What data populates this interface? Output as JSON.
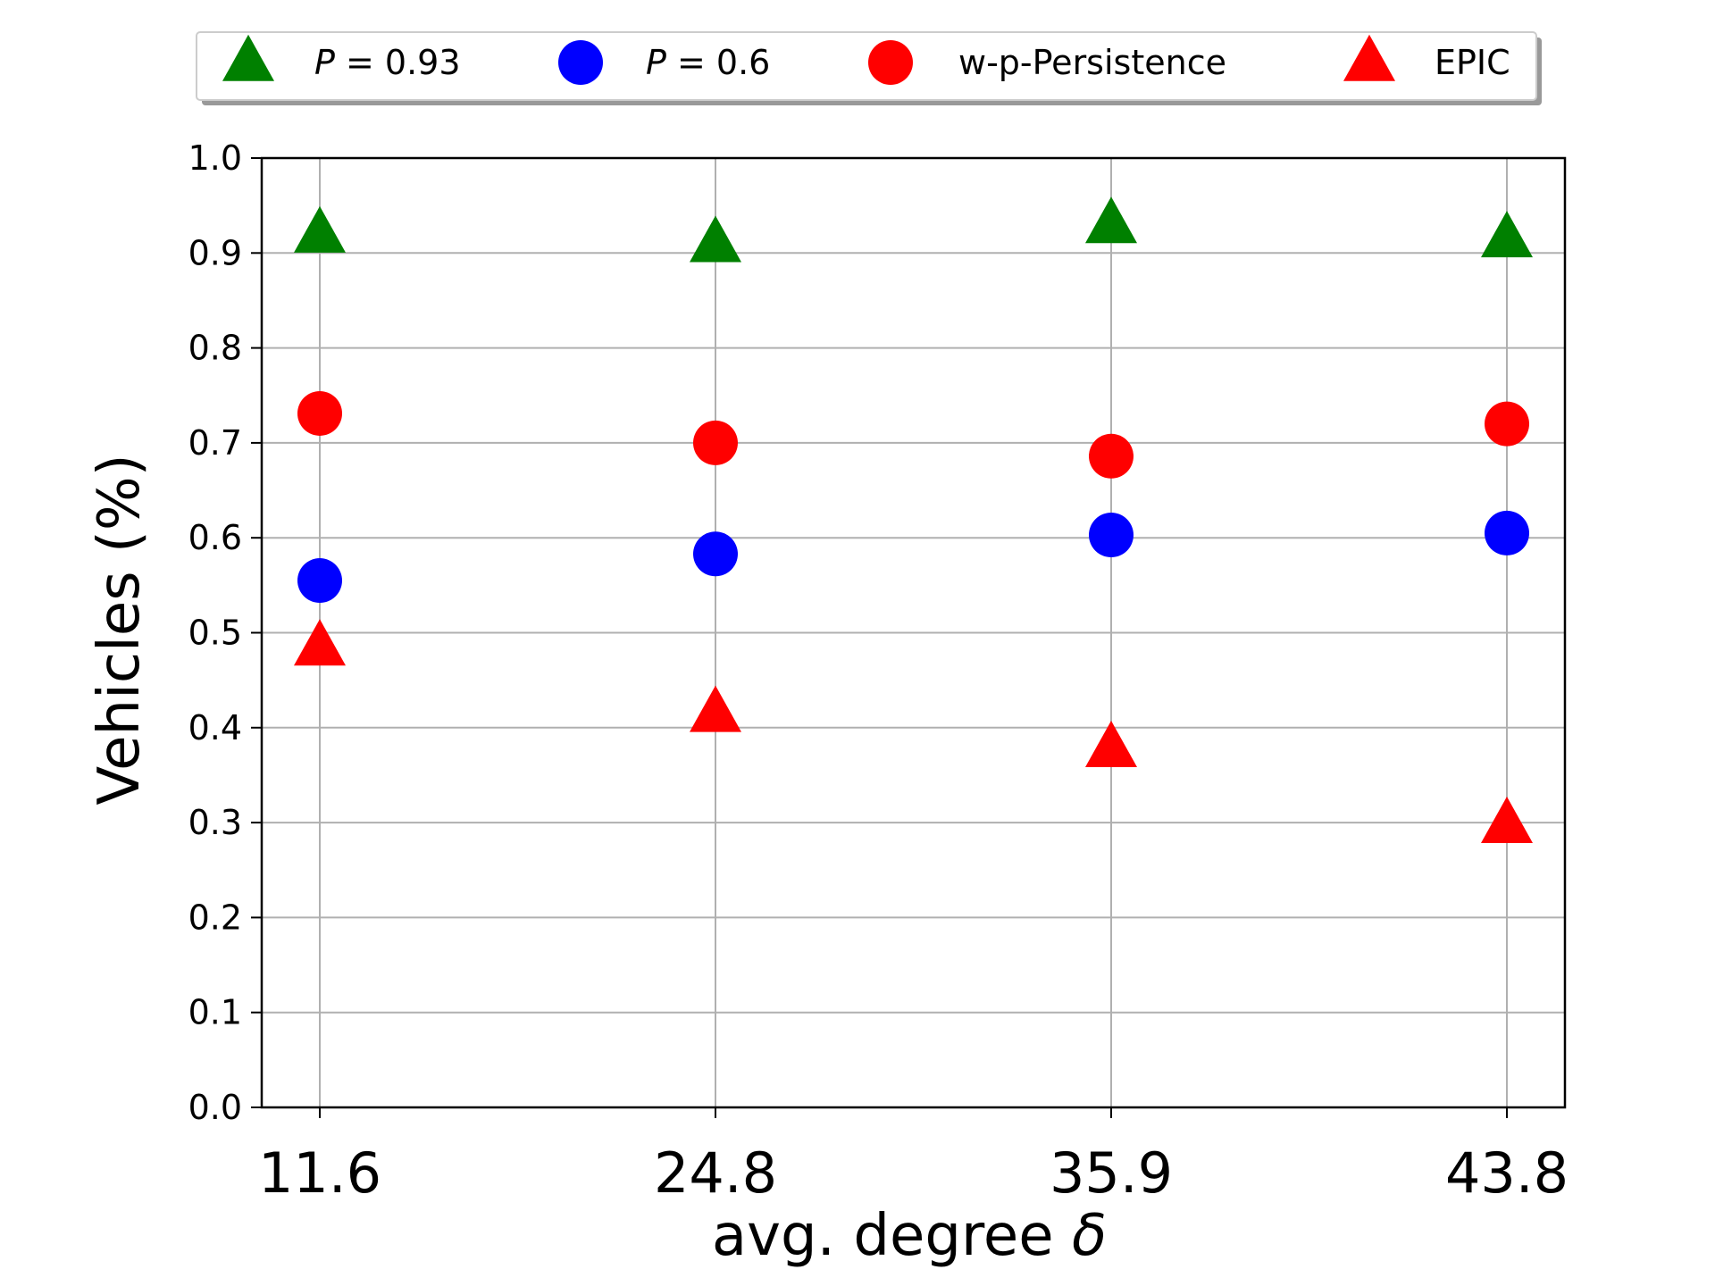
{
  "chart_data": {
    "type": "scatter",
    "categories": [
      "11.6",
      "24.8",
      "35.9",
      "43.8"
    ],
    "xlabel_text": "avg. degree ",
    "xlabel_symbol": "δ",
    "ylabel": "Vehicles (%)",
    "ylim": [
      0.0,
      1.0
    ],
    "yticks": [
      "0.0",
      "0.1",
      "0.2",
      "0.3",
      "0.4",
      "0.5",
      "0.6",
      "0.7",
      "0.8",
      "0.9",
      "1.0"
    ],
    "grid": true,
    "legend_position": "top, outside plot, horizontal",
    "series": [
      {
        "name": "P = 0.93",
        "legend_var": "P",
        "legend_rest": " = 0.93",
        "marker": "triangle",
        "color": "#008000",
        "values": [
          0.92,
          0.91,
          0.93,
          0.915
        ]
      },
      {
        "name": "P = 0.6",
        "legend_var": "P",
        "legend_rest": " = 0.6",
        "marker": "circle",
        "color": "#0000ff",
        "values": [
          0.555,
          0.583,
          0.603,
          0.605
        ]
      },
      {
        "name": "w-p-Persistence",
        "legend_var": "",
        "legend_rest": "w-p-Persistence",
        "marker": "circle",
        "color": "#ff0000",
        "values": [
          0.731,
          0.7,
          0.686,
          0.72
        ]
      },
      {
        "name": "EPIC",
        "legend_var": "",
        "legend_rest": "EPIC",
        "marker": "triangle",
        "color": "#ff0000",
        "values": [
          0.485,
          0.415,
          0.378,
          0.298
        ]
      }
    ]
  }
}
